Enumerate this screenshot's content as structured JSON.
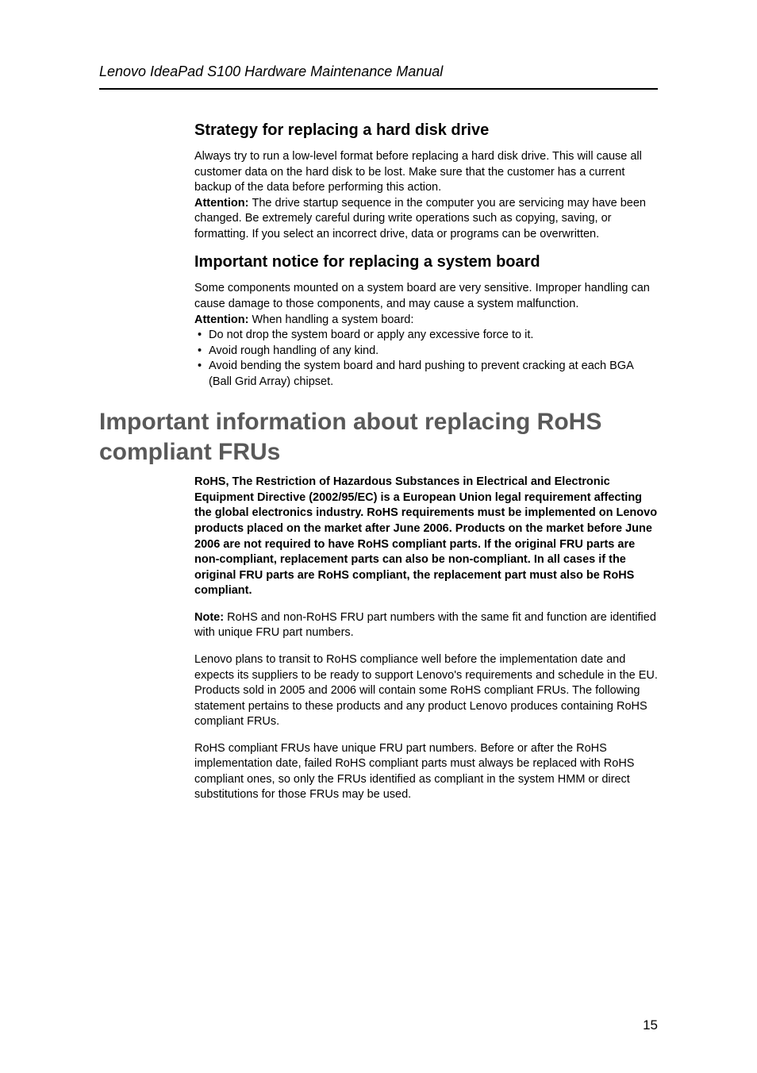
{
  "header": {
    "title": "Lenovo IdeaPad S100 Hardware Maintenance Manual"
  },
  "section1": {
    "heading": "Strategy for replacing a hard disk drive",
    "para1": "Always try to run a low-level format before replacing a hard disk drive. This will cause all customer data on the hard disk to be lost. Make sure that the customer has a current backup of the data before performing this action.",
    "attention_label": "Attention: ",
    "attention_text": "The drive startup sequence in the computer you are servicing may have been changed. Be extremely careful during write operations such as copying, saving, or formatting. If you select an incorrect drive, data or programs can be overwritten."
  },
  "section2": {
    "heading": "Important notice for replacing a system board",
    "para1": "Some components mounted on a system board are very sensitive. Improper handling can cause damage to those components, and may cause a system malfunction.",
    "attention_label": "Attention: ",
    "attention_text": "When handling a system board:",
    "bullets": {
      "b1": "Do not drop the system board or apply any excessive force to it.",
      "b2": "Avoid rough handling of any kind.",
      "b3": "Avoid bending the system board and hard pushing to prevent cracking at each BGA (Ball Grid Array) chipset."
    }
  },
  "section3": {
    "heading": "Important information about replacing RoHS compliant FRUs",
    "bold_para": "RoHS, The Restriction of Hazardous Substances in Electrical and Electronic Equipment Directive (2002/95/EC) is a European Union legal requirement affecting the global electronics industry. RoHS requirements must be implemented on Lenovo products placed on the market after June 2006. Products on the market before June 2006 are not required to have RoHS compliant parts. If the original FRU parts are non-compliant, replacement parts can also be non-compliant. In all cases if the original FRU parts are RoHS compliant, the replacement part must also be RoHS compliant.",
    "note_label": "Note: ",
    "note_text": "RoHS and non-RoHS FRU part numbers with the same fit and function are identified with unique FRU part numbers.",
    "para2": "Lenovo plans to transit to RoHS compliance well before the implementation date and expects its suppliers to be ready to support Lenovo's requirements and schedule in the EU. Products sold in 2005 and 2006 will contain some RoHS compliant FRUs. The following statement pertains to these products and any product Lenovo produces containing RoHS compliant FRUs.",
    "para3": "RoHS compliant FRUs have unique FRU part numbers. Before or after the RoHS implementation date, failed RoHS compliant parts must always be replaced with RoHS compliant ones, so only the FRUs identified as compliant in the system HMM or direct substitutions for those FRUs may be used."
  },
  "footer": {
    "page_number": "15"
  }
}
